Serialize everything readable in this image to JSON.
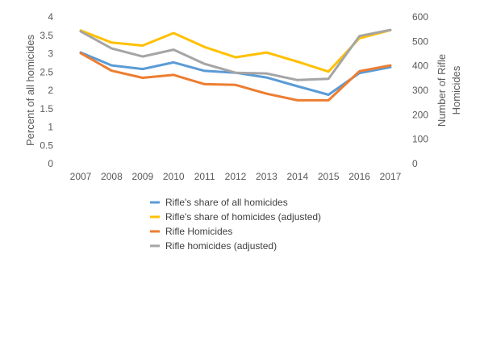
{
  "chart_data": {
    "type": "line",
    "title": "",
    "x": [
      "2007",
      "2008",
      "2009",
      "2010",
      "2011",
      "2012",
      "2013",
      "2014",
      "2015",
      "2016",
      "2017"
    ],
    "left_axis": {
      "label": "Percent of all homicides",
      "ylim": [
        0,
        4
      ],
      "ticks": [
        "0",
        "0.5",
        "1",
        "1.5",
        "2",
        "2.5",
        "3",
        "3.5",
        "4"
      ]
    },
    "right_axis": {
      "label_line1": "Number of Rifle",
      "label_line2": "Homicides",
      "ylim": [
        0,
        600
      ],
      "ticks": [
        "0",
        "100",
        "200",
        "300",
        "400",
        "500",
        "600"
      ]
    },
    "grid": false,
    "legend": "bottom",
    "series": [
      {
        "name": "Rifle's share of all homicides",
        "axis": "left",
        "color": "#5B9BD5",
        "values": [
          3.03,
          2.68,
          2.58,
          2.76,
          2.53,
          2.48,
          2.35,
          2.11,
          1.88,
          2.47,
          2.63
        ]
      },
      {
        "name": "Rifle's share of homicides (adjusted)",
        "axis": "left",
        "color": "#FFC000",
        "values": [
          3.63,
          3.3,
          3.22,
          3.56,
          3.18,
          2.9,
          3.03,
          2.78,
          2.51,
          3.42,
          3.64
        ]
      },
      {
        "name": "Rifle Homicides",
        "axis": "right",
        "color": "#ED7D31",
        "values": [
          452,
          380,
          351,
          363,
          325,
          322,
          286,
          259,
          259,
          378,
          402
        ]
      },
      {
        "name": "Rifle homicides (adjusted)",
        "axis": "right",
        "color": "#A5A5A5",
        "values": [
          541,
          471,
          438,
          466,
          408,
          372,
          369,
          342,
          347,
          522,
          547
        ]
      }
    ]
  }
}
